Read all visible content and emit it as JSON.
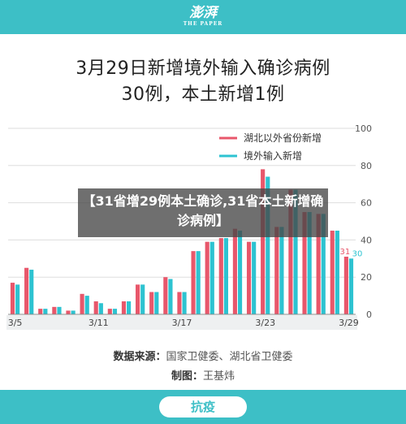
{
  "header": {
    "logo_text": "澎湃",
    "logo_sub": "THE PAPER"
  },
  "headline": {
    "line1": "3月29日新增境外输入确诊病例",
    "line2": "30例，本土新增1例"
  },
  "chart_data": {
    "type": "bar",
    "x": [
      "3/5",
      "3/6",
      "3/7",
      "3/8",
      "3/9",
      "3/10",
      "3/11",
      "3/12",
      "3/13",
      "3/14",
      "3/15",
      "3/16",
      "3/17",
      "3/18",
      "3/19",
      "3/20",
      "3/21",
      "3/22",
      "3/23",
      "3/24",
      "3/25",
      "3/26",
      "3/27",
      "3/28",
      "3/29"
    ],
    "x_ticks": [
      "3/5",
      "3/11",
      "3/17",
      "3/23",
      "3/29"
    ],
    "series": [
      {
        "name": "湖北以外省份新增",
        "color": "#e8576b",
        "values": [
          17,
          25,
          3,
          4,
          2,
          11,
          7,
          3,
          7,
          16,
          12,
          20,
          12,
          34,
          39,
          41,
          46,
          39,
          78,
          47,
          67,
          55,
          54,
          45,
          31
        ]
      },
      {
        "name": "境外输入新增",
        "color": "#2dc3d1",
        "values": [
          16,
          24,
          3,
          4,
          2,
          10,
          6,
          3,
          7,
          16,
          12,
          19,
          12,
          34,
          39,
          41,
          45,
          39,
          74,
          47,
          67,
          55,
          54,
          45,
          30
        ]
      }
    ],
    "ylim": [
      0,
      100
    ],
    "yticks": [
      0,
      20,
      40,
      60,
      80,
      100
    ],
    "legend_position": "top-right",
    "annotations": [
      {
        "label": "31",
        "series": 0,
        "index": 24
      },
      {
        "label": "30",
        "series": 1,
        "index": 24
      }
    ],
    "grid": true
  },
  "source": {
    "label": "数据来源：",
    "value": "国家卫健委、湖北省卫健委",
    "author_label": "制图：",
    "author": "王基炜"
  },
  "overlay": {
    "text": "【31省增29例本土确诊,31省本土新增确诊病例】"
  },
  "footer": {
    "tag": "抗疫"
  }
}
